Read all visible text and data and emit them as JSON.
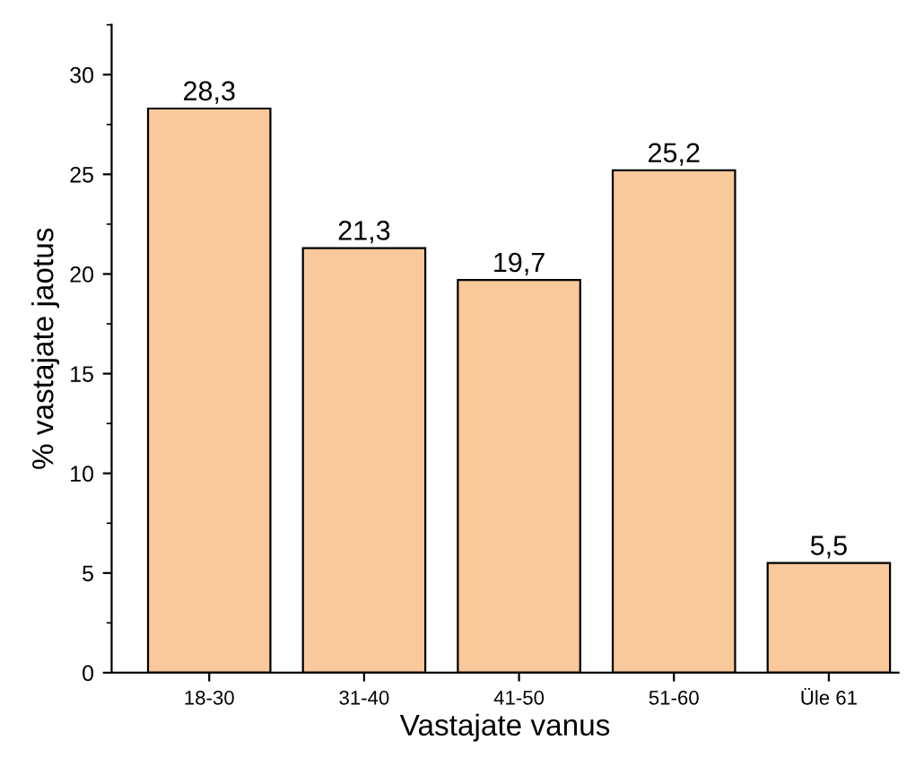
{
  "chart_data": {
    "type": "bar",
    "xlabel": "Vastajate vanus",
    "ylabel": "% vastajate jaotus",
    "categories": [
      "18-30",
      "31-40",
      "41-50",
      "51-60",
      "Üle 61"
    ],
    "values": [
      28.3,
      21.3,
      19.7,
      25.2,
      5.5
    ],
    "value_labels": [
      "28,3",
      "21,3",
      "19,7",
      "25,2",
      "5,5"
    ],
    "color": "#f9c89b",
    "ylim": [
      0,
      32.5
    ],
    "yticks": [
      0,
      5,
      10,
      15,
      20,
      25,
      30
    ],
    "grid": false
  }
}
